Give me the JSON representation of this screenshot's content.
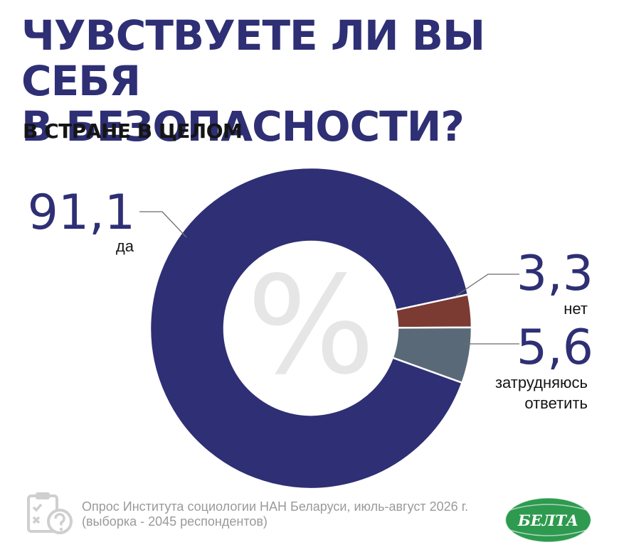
{
  "title_lines": [
    "ЧУВСТВУЕТЕ ЛИ ВЫ СЕБЯ",
    "В БЕЗОПАСНОСТИ?"
  ],
  "subtitle": "В СТРАНЕ В ЦЕЛОМ",
  "center_symbol": "%",
  "chart_data": {
    "type": "pie",
    "donut": true,
    "unit": "%",
    "slices": [
      {
        "label": "да",
        "value": 91.1,
        "value_text": "91,1",
        "color": "#2e2f74"
      },
      {
        "label": "нет",
        "value": 3.3,
        "value_text": "3,3",
        "color": "#7b3a32"
      },
      {
        "label": "затрудняюсь ответить",
        "value": 5.6,
        "value_text": "5,6",
        "color": "#5a6977"
      }
    ]
  },
  "source_lines": [
    "Опрос Института социологии НАН Беларуси, июль-август 2026 г.",
    "(выборка - 2045 респондентов)"
  ],
  "logo_text": "БЕЛТА",
  "colors": {
    "title": "#2e2f74",
    "percent_symbol": "#e6e6e6",
    "source": "#9a9a9a",
    "logo": "#2e9a4f"
  },
  "icons": [
    "clipboard-question-icon"
  ]
}
